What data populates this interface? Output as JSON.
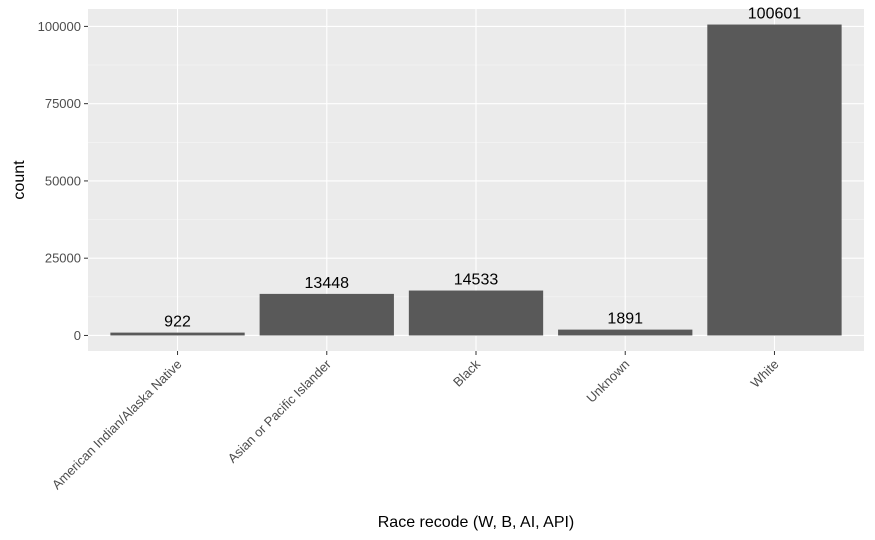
{
  "chart_data": {
    "type": "bar",
    "categories": [
      "American Indian/Alaska Native",
      "Asian or Pacific Islander",
      "Black",
      "Unknown",
      "White"
    ],
    "values": [
      922,
      13448,
      14533,
      1891,
      100601
    ],
    "data_labels": [
      "922",
      "13448",
      "14533",
      "1891",
      "100601"
    ],
    "xlabel": "Race recode (W, B, AI, API)",
    "ylabel": "count",
    "ylim": [
      -5030,
      105631
    ],
    "yticks": [
      0,
      25000,
      50000,
      75000,
      100000
    ],
    "ytick_labels": [
      "0",
      "25000",
      "50000",
      "75000",
      "100000"
    ],
    "grid": true,
    "colors": {
      "bar": "#595959",
      "panel": "#ebebeb",
      "grid_major": "#ffffff",
      "grid_minor": "#f5f5f5",
      "tick_text": "#4d4d4d",
      "tick_mark": "#333333"
    }
  }
}
